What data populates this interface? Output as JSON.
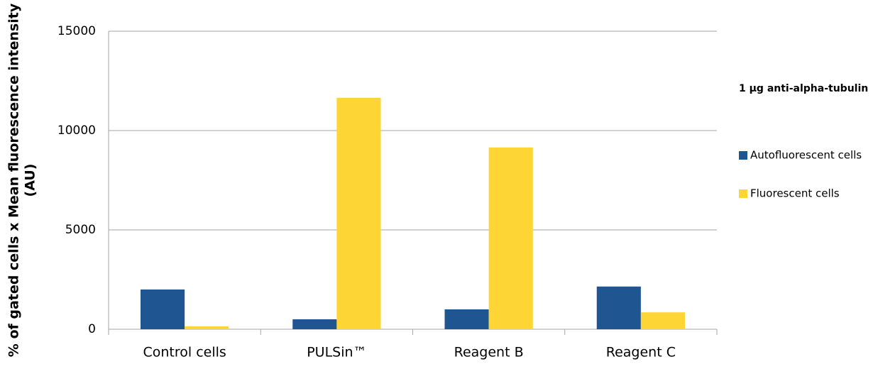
{
  "chart_data": {
    "type": "bar",
    "ylabel": [
      "% of gated cells x Mean fluorescence intensity",
      "(AU)"
    ],
    "legend_title": "1 µg anti-alpha-tubulin",
    "categories": [
      "Control cells",
      "PULSin™",
      "Reagent B",
      "Reagent C"
    ],
    "series": [
      {
        "name": "Autofluorescent cells",
        "color": "#1f5591",
        "values": [
          2000,
          500,
          1000,
          2150
        ]
      },
      {
        "name": "Fluorescent cells",
        "color": "#fdd535",
        "values": [
          150,
          11650,
          9150,
          850
        ]
      }
    ],
    "ylim": [
      0,
      15000
    ],
    "yticks": [
      0,
      5000,
      10000,
      15000
    ],
    "grid": true,
    "legend": "right"
  }
}
